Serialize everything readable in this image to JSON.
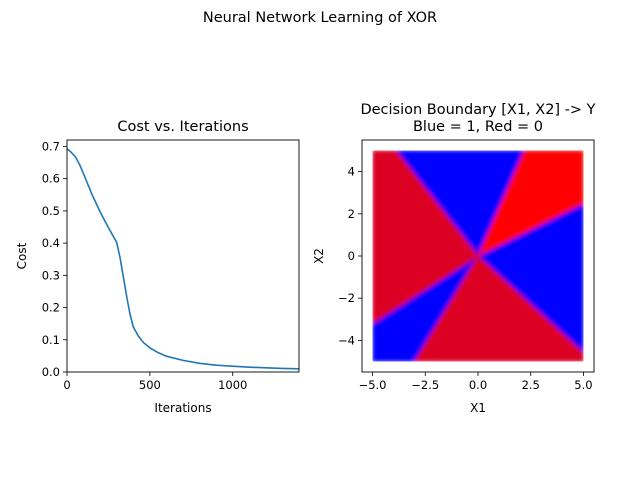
{
  "figure": {
    "suptitle": "Neural Network Learning of XOR"
  },
  "colors": {
    "line": "#1f77b4",
    "blue": "#0000ff",
    "red": "#ff0000",
    "crimson": "#dc0020"
  },
  "chart_data": [
    {
      "type": "line",
      "title": "Cost vs. Iterations",
      "xlabel": "Iterations",
      "ylabel": "Cost",
      "xlim": [
        0,
        1400
      ],
      "ylim": [
        0,
        0.72
      ],
      "xticks": [
        0,
        500,
        1000
      ],
      "xtick_labels": [
        "0",
        "500",
        "1000"
      ],
      "yticks": [
        0,
        0.1,
        0.2,
        0.3,
        0.4,
        0.5,
        0.6,
        0.7
      ],
      "ytick_labels": [
        "0.0",
        "0.1",
        "0.2",
        "0.3",
        "0.4",
        "0.5",
        "0.6",
        "0.7"
      ],
      "grid": false,
      "series": [
        {
          "x": [
            0,
            25,
            50,
            75,
            100,
            150,
            200,
            250,
            300,
            320,
            340,
            360,
            380,
            400,
            430,
            460,
            500,
            550,
            600,
            700,
            800,
            900,
            1000,
            1100,
            1200,
            1300,
            1400
          ],
          "y": [
            0.693,
            0.682,
            0.668,
            0.645,
            0.615,
            0.552,
            0.497,
            0.448,
            0.402,
            0.355,
            0.295,
            0.235,
            0.18,
            0.14,
            0.112,
            0.092,
            0.075,
            0.06,
            0.049,
            0.036,
            0.027,
            0.021,
            0.018,
            0.015,
            0.013,
            0.011,
            0.01
          ]
        }
      ]
    },
    {
      "type": "heatmap",
      "title": "Decision Boundary [X1, X2] -> Y\nBlue = 1, Red = 0",
      "title_lines": [
        "Decision Boundary [X1, X2] -> Y",
        "Blue = 1, Red = 0"
      ],
      "xlabel": "X1",
      "ylabel": "X2",
      "xlim": [
        -5.5,
        5.5
      ],
      "ylim": [
        -5.5,
        5.5
      ],
      "data_extent": [
        -5,
        5
      ],
      "xticks": [
        -5,
        -2.5,
        0,
        2.5,
        5
      ],
      "xtick_labels": [
        "−5.0",
        "−2.5",
        "0.0",
        "2.5",
        "5.0"
      ],
      "yticks": [
        -4,
        -2,
        0,
        2,
        4
      ],
      "ytick_labels": [
        "−4",
        "−2",
        "0",
        "2",
        "4"
      ],
      "grid": false,
      "regions": [
        {
          "label": "Y = 1",
          "color": "blue",
          "polygon": [
            [
              -3.9,
              5
            ],
            [
              2.2,
              5
            ],
            [
              0,
              0
            ]
          ]
        },
        {
          "label": "Y = 1",
          "color": "blue",
          "polygon": [
            [
              5,
              2.5
            ],
            [
              5,
              -4.6
            ],
            [
              0,
              0
            ]
          ]
        },
        {
          "label": "Y = 1",
          "color": "blue",
          "polygon": [
            [
              -5,
              -3.2
            ],
            [
              -5,
              -5
            ],
            [
              -3.0,
              -5
            ],
            [
              0,
              0
            ]
          ]
        },
        {
          "label": "Y = 0",
          "color": "red",
          "polygon": [
            [
              2.2,
              5
            ],
            [
              5,
              5
            ],
            [
              5,
              2.5
            ],
            [
              0,
              0
            ]
          ]
        },
        {
          "label": "Y = 0",
          "color": "crimson",
          "polygon": [
            [
              -5,
              5
            ],
            [
              -3.9,
              5
            ],
            [
              0,
              0
            ],
            [
              -5,
              -3.2
            ]
          ]
        },
        {
          "label": "Y = 0",
          "color": "crimson",
          "polygon": [
            [
              -3.0,
              -5
            ],
            [
              5,
              -5
            ],
            [
              5,
              -4.6
            ],
            [
              0,
              0
            ]
          ]
        }
      ]
    }
  ]
}
